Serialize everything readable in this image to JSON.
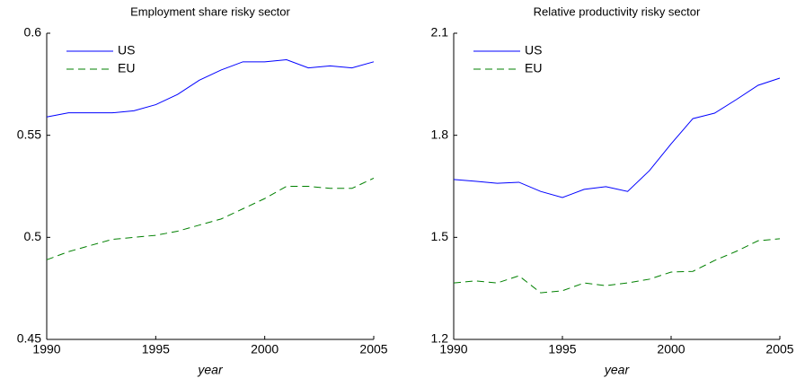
{
  "chart_data": [
    {
      "type": "line",
      "title": "Employment share risky sector",
      "xlabel": "year",
      "x": [
        1990,
        1991,
        1992,
        1993,
        1994,
        1995,
        1996,
        1997,
        1998,
        1999,
        2000,
        2001,
        2002,
        2003,
        2004,
        2005
      ],
      "xlim": [
        1990,
        2005
      ],
      "xticks": [
        1990,
        1995,
        2000,
        2005
      ],
      "ylim": [
        0.45,
        0.6
      ],
      "yticks": [
        0.45,
        0.5,
        0.55,
        0.6
      ],
      "legend": "upper left",
      "series": [
        {
          "name": "US",
          "color": "#0000ff",
          "linestyle": "solid",
          "values": [
            0.559,
            0.561,
            0.561,
            0.561,
            0.562,
            0.565,
            0.57,
            0.577,
            0.582,
            0.586,
            0.586,
            0.587,
            0.583,
            0.584,
            0.583,
            0.586
          ]
        },
        {
          "name": "EU",
          "color": "#008000",
          "linestyle": "dashed",
          "values": [
            0.489,
            0.493,
            0.496,
            0.499,
            0.5,
            0.501,
            0.503,
            0.506,
            0.509,
            0.514,
            0.519,
            0.525,
            0.525,
            0.524,
            0.524,
            0.529
          ]
        }
      ]
    },
    {
      "type": "line",
      "title": "Relative productivity risky sector",
      "xlabel": "year",
      "x": [
        1990,
        1991,
        1992,
        1993,
        1994,
        1995,
        1996,
        1997,
        1998,
        1999,
        2000,
        2001,
        2002,
        2003,
        2004,
        2005
      ],
      "xlim": [
        1990,
        2005
      ],
      "xticks": [
        1990,
        1995,
        2000,
        2005
      ],
      "ylim": [
        1.2,
        2.1
      ],
      "yticks": [
        1.2,
        1.5,
        1.8,
        2.1
      ],
      "legend": "upper left",
      "series": [
        {
          "name": "US",
          "color": "#0000ff",
          "linestyle": "solid",
          "values": [
            1.67,
            1.665,
            1.659,
            1.662,
            1.635,
            1.617,
            1.641,
            1.649,
            1.635,
            1.696,
            1.775,
            1.849,
            1.865,
            1.905,
            1.947,
            1.968
          ]
        },
        {
          "name": "EU",
          "color": "#008000",
          "linestyle": "dashed",
          "values": [
            1.366,
            1.372,
            1.366,
            1.387,
            1.337,
            1.343,
            1.366,
            1.358,
            1.366,
            1.377,
            1.398,
            1.4,
            1.432,
            1.459,
            1.49,
            1.496
          ]
        }
      ]
    }
  ]
}
